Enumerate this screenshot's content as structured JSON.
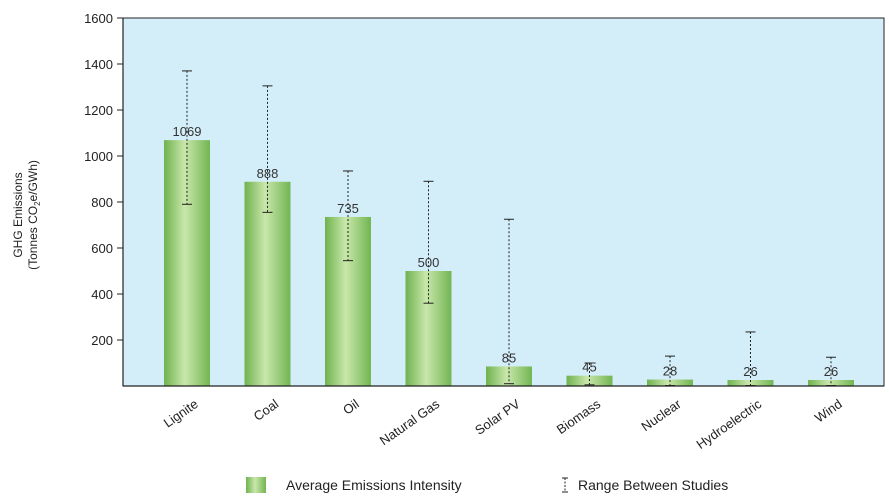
{
  "chart_data": {
    "type": "bar",
    "categories": [
      "Lignite",
      "Coal",
      "Oil",
      "Natural Gas",
      "Solar PV",
      "Biomass",
      "Nuclear",
      "Hydroelectric",
      "Wind"
    ],
    "values": [
      1069,
      888,
      735,
      500,
      85,
      45,
      28,
      26,
      26
    ],
    "value_labels": [
      "1069",
      "888",
      "735",
      "500",
      "85",
      "45",
      "28",
      "26",
      "26"
    ],
    "range_low": [
      790,
      755,
      545,
      360,
      10,
      5,
      2,
      2,
      2
    ],
    "range_high": [
      1370,
      1305,
      935,
      890,
      725,
      100,
      130,
      235,
      125
    ],
    "ylabel_line1": "GHG Emissions",
    "ylabel_line2_pre": "(Tonnes CO",
    "ylabel_line2_sub": "2",
    "ylabel_line2_post": "e/GWh)",
    "yticks": [
      200,
      400,
      600,
      800,
      1000,
      1200,
      1400,
      1600
    ],
    "ylim": [
      0,
      1600
    ],
    "grid": false,
    "legend_position": "bottom",
    "legend": {
      "bar_label": "Average Emissions Intensity",
      "range_label": "Range Between Studies"
    },
    "colors": {
      "plot_background": "#d4eef9",
      "bar_light": "#c8e6a8",
      "bar_mid": "#8cc66a",
      "bar_dark": "#5fa843",
      "whisker": "#222222"
    }
  }
}
